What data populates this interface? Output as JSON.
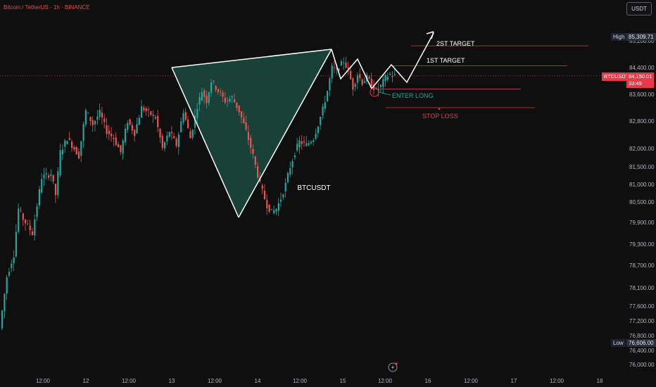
{
  "header": {
    "title": "Bitcoin / TetherUS · 1h · BINANCE",
    "currency_button": "USDT"
  },
  "chart_data": {
    "type": "candlestick",
    "symbol_label": "BTCUSDT",
    "yticks": [
      85200,
      84400,
      83600,
      82800,
      82000,
      81500,
      81000,
      80500,
      79900,
      79300,
      78700,
      78100,
      77600,
      77200,
      76800,
      76400,
      76000
    ],
    "ytick_labels": [
      "85,200.00",
      "84,400.00",
      "83,600.00",
      "82,800.00",
      "82,000.00",
      "81,500.00",
      "81,000.00",
      "80,500.00",
      "79,900.00",
      "79,300.00",
      "78,700.00",
      "78,100.00",
      "77,600.00",
      "77,200.00",
      "76,800.00",
      "76,400.00",
      "76,000.00"
    ],
    "xticks": [
      "12:00",
      "12",
      "12:00",
      "13",
      "12:00",
      "14",
      "12:00",
      "15",
      "12:00",
      "16",
      "12:00",
      "17",
      "12:00",
      "18"
    ],
    "high": {
      "label": "High",
      "value": "85,309.71"
    },
    "low": {
      "label": "Low",
      "value": "76,606.00"
    },
    "current_price": {
      "symbol": "BTCUSDT",
      "value": "84,150.01",
      "countdown": "33:49",
      "price": 84150.01
    },
    "levels": [
      {
        "name": "2ST TARGET",
        "price": 85050,
        "color": "#e8394a"
      },
      {
        "name": "1ST TARGET",
        "price": 84450,
        "color": "#e8394a"
      },
      {
        "name": "ENTER LONG",
        "price": 83760,
        "color": "#e8394a"
      },
      {
        "name": "STOP LOSS",
        "price": 83200,
        "color": "#e8394a"
      }
    ],
    "colors": {
      "up": "#26a69a",
      "down": "#ef5350",
      "pattern_fill": "#1b4a3e",
      "pattern_stroke": "#ffffff",
      "level": "#e8394a",
      "enter_long": "#26a69a"
    }
  }
}
